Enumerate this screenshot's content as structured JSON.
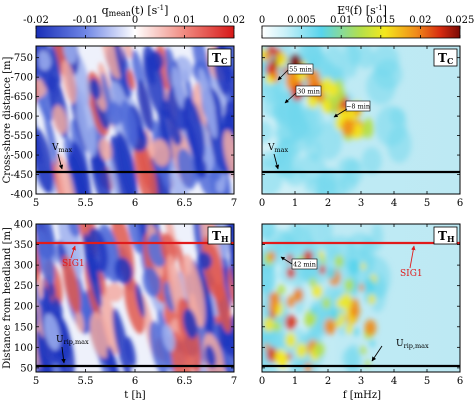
{
  "chart_data": [
    {
      "type": "heatmap",
      "panel": "top-left",
      "tag": "T_C",
      "tag_main": "T",
      "tag_sub": "C",
      "colorbar_title_main": "q",
      "colorbar_title_sub": "mean",
      "colorbar_title_rest": "(t) [s",
      "colorbar_title_exp": "-1",
      "colorbar_title_close": "]",
      "colorbar_ticks": [
        "-0.02",
        "-0.01",
        "0",
        "0.01",
        "0.02"
      ],
      "colorbar_range": [
        -0.02,
        0.02
      ],
      "ylabel": "Cross-shore distance [m]",
      "yticks": [
        "-750",
        "-700",
        "-650",
        "-600",
        "-550",
        "-500",
        "-450",
        "-400"
      ],
      "ylim": [
        -400,
        -780
      ],
      "xticks": [
        "5",
        "5.5",
        "6",
        "6.5",
        "7"
      ],
      "xlim": [
        5,
        7
      ],
      "hline": {
        "value": -465,
        "color": "#000000"
      },
      "annotation": {
        "main": "V",
        "sub": "max"
      }
    },
    {
      "type": "heatmap",
      "panel": "top-right",
      "tag": "T_C",
      "tag_main": "T",
      "tag_sub": "C",
      "colorbar_title_main": "E",
      "colorbar_title_sup": "q",
      "colorbar_title_rest": "(f) [s",
      "colorbar_title_exp": "-1",
      "colorbar_title_close": "]",
      "colorbar_ticks": [
        "0",
        "0.005",
        "0.01",
        "0.015",
        "0.02",
        "0.025"
      ],
      "colorbar_range": [
        0,
        0.025
      ],
      "xticks": [
        "0",
        "1",
        "2",
        "3",
        "4",
        "5",
        "6"
      ],
      "xlim": [
        0,
        6
      ],
      "hline": {
        "value": -465,
        "color": "#000000"
      },
      "annotation": {
        "main": "V",
        "sub": "max"
      },
      "callouts": [
        "55 min",
        "30 min",
        "~8 min"
      ]
    },
    {
      "type": "heatmap",
      "panel": "bottom-left",
      "tag": "T_H",
      "tag_main": "T",
      "tag_sub": "H",
      "ylabel": "Distance from headland [m]",
      "yticks": [
        "50",
        "100",
        "150",
        "200",
        "250",
        "300",
        "350",
        "400"
      ],
      "ylim": [
        40,
        400
      ],
      "xticks": [
        "5",
        "5.5",
        "6",
        "6.5",
        "7"
      ],
      "xlim": [
        5,
        7
      ],
      "xlabel": "t [h]",
      "hlines": [
        {
          "value": 352,
          "color": "#e11b1b"
        },
        {
          "value": 52,
          "color": "#000000"
        }
      ],
      "annotations": [
        {
          "main": "SIG1",
          "sub": "",
          "color": "#e11b1b"
        },
        {
          "main": "U",
          "sub": "rip,max",
          "color": "#000000"
        }
      ]
    },
    {
      "type": "heatmap",
      "panel": "bottom-right",
      "tag": "T_H",
      "tag_main": "T",
      "tag_sub": "H",
      "xticks": [
        "0",
        "1",
        "2",
        "3",
        "4",
        "5",
        "6"
      ],
      "xlim": [
        0,
        6
      ],
      "xlabel": "f [mHz]",
      "hlines": [
        {
          "value": 352,
          "color": "#e11b1b"
        },
        {
          "value": 52,
          "color": "#000000"
        }
      ],
      "annotations": [
        {
          "main": "SIG1",
          "sub": "",
          "color": "#e11b1b"
        },
        {
          "main": "U",
          "sub": "rip,max",
          "color": "#000000"
        }
      ],
      "callouts": [
        "42 min"
      ]
    }
  ]
}
